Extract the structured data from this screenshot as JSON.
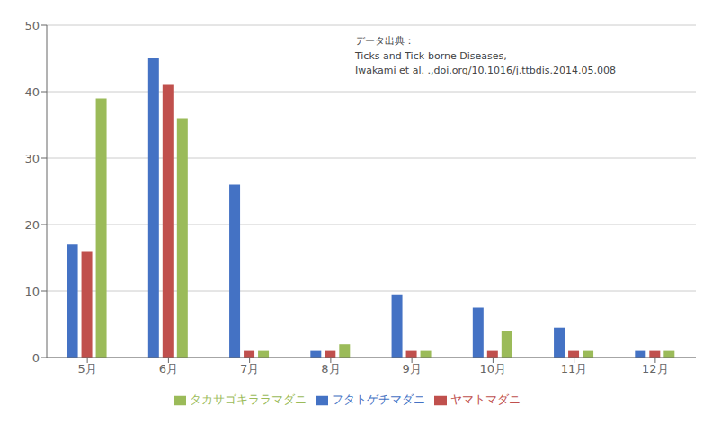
{
  "chart_data": {
    "type": "bar",
    "categories": [
      "5月",
      "6月",
      "7月",
      "8月",
      "9月",
      "10月",
      "11月",
      "12月"
    ],
    "series": [
      {
        "name": "フタトゲチマダニ",
        "color": "#4472C4",
        "values": [
          17,
          45,
          26,
          1,
          9.5,
          7.5,
          4.5,
          1
        ]
      },
      {
        "name": "ヤマトマダニ",
        "color": "#C0504D",
        "values": [
          16,
          41,
          1,
          1,
          1,
          1,
          1,
          1
        ]
      },
      {
        "name": "タカサゴキララマダニ",
        "color": "#9BBB59",
        "values": [
          39,
          36,
          1,
          2,
          1,
          4,
          1,
          1
        ]
      }
    ],
    "ylim": [
      0,
      50
    ],
    "yticks": [
      0,
      10,
      20,
      30,
      40,
      50
    ],
    "grid": true,
    "legend": "bottom",
    "annotation": "データ出典：\nTicks and Tick-borne Diseases,\nIwakami et al. .,doi.org/10.1016/j.ttbdis.2014.05.008"
  }
}
